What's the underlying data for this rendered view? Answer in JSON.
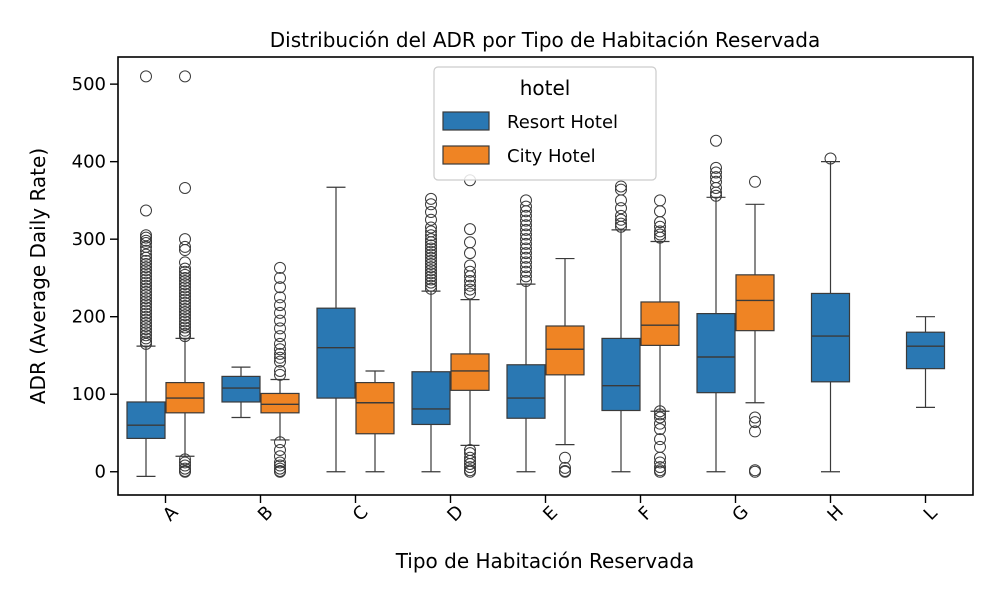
{
  "chart_data": {
    "type": "box",
    "title": "Distribución del ADR por Tipo de Habitación Reservada",
    "xlabel": "Tipo de Habitación Reservada",
    "ylabel": "ADR (Average Daily Rate)",
    "ylim": [
      -30,
      535
    ],
    "yticks": [
      0,
      100,
      200,
      300,
      400,
      500
    ],
    "categories": [
      "A",
      "B",
      "C",
      "D",
      "E",
      "F",
      "G",
      "H",
      "L"
    ],
    "legend": {
      "title": "hotel",
      "placement": "top-center"
    },
    "series": [
      {
        "name": "Resort Hotel",
        "color": "#2a78b3",
        "boxes": [
          {
            "category": "A",
            "whislo": -6,
            "q1": 43,
            "med": 60,
            "q3": 90,
            "whishi": 162,
            "fliers": [
              510,
              337,
              305,
              302,
              298,
              295,
              290,
              285,
              280,
              276,
              272,
              268,
              264,
              260,
              256,
              252,
              248,
              244,
              240,
              236,
              232,
              228,
              224,
              220,
              216,
              212,
              208,
              204,
              200,
              196,
              192,
              188,
              184,
              180,
              176,
              172,
              168,
              165
            ]
          },
          {
            "category": "B",
            "whislo": 70,
            "q1": 90,
            "med": 108,
            "q3": 123,
            "whishi": 135,
            "fliers": []
          },
          {
            "category": "C",
            "whislo": 0,
            "q1": 95,
            "med": 160,
            "q3": 211,
            "whishi": 367,
            "fliers": []
          },
          {
            "category": "D",
            "whislo": 0,
            "q1": 61,
            "med": 81,
            "q3": 129,
            "whishi": 233,
            "fliers": [
              352,
              345,
              335,
              325,
              315,
              310,
              305,
              300,
              296,
              292,
              288,
              284,
              280,
              276,
              272,
              268,
              264,
              260,
              256,
              252,
              248,
              244,
              240,
              236
            ]
          },
          {
            "category": "E",
            "whislo": 0,
            "q1": 69,
            "med": 95,
            "q3": 138,
            "whishi": 242,
            "fliers": [
              350,
              342,
              336,
              330,
              324,
              318,
              312,
              306,
              300,
              294,
              288,
              282,
              276,
              270,
              264,
              258,
              252,
              246
            ]
          },
          {
            "category": "F",
            "whislo": 0,
            "q1": 79,
            "med": 111,
            "q3": 172,
            "whishi": 312,
            "fliers": [
              368,
              364,
              350,
              340,
              330,
              325,
              320,
              316
            ]
          },
          {
            "category": "G",
            "whislo": 0,
            "q1": 102,
            "med": 148,
            "q3": 204,
            "whishi": 354,
            "fliers": [
              427,
              392,
              386,
              380,
              374,
              366,
              360,
              356
            ]
          },
          {
            "category": "H",
            "whislo": 0,
            "q1": 116,
            "med": 175,
            "q3": 230,
            "whishi": 400,
            "fliers": [
              404
            ]
          },
          {
            "category": "L",
            "whislo": 83,
            "q1": 133,
            "med": 162,
            "q3": 180,
            "whishi": 200,
            "fliers": []
          }
        ]
      },
      {
        "name": "City Hotel",
        "color": "#ef8424",
        "boxes": [
          {
            "category": "A",
            "whislo": 20,
            "q1": 76,
            "med": 95,
            "q3": 115,
            "whishi": 172,
            "fliers": [
              510,
              366,
              300,
              290,
              286,
              270,
              262,
              258,
              254,
              250,
              246,
              242,
              238,
              234,
              230,
              226,
              222,
              218,
              214,
              210,
              206,
              202,
              198,
              194,
              190,
              186,
              182,
              178,
              175,
              16,
              12,
              8,
              4,
              1,
              0
            ]
          },
          {
            "category": "B",
            "whislo": 41,
            "q1": 76,
            "med": 87,
            "q3": 101,
            "whishi": 119,
            "fliers": [
              263,
              250,
              238,
              225,
              215,
              205,
              195,
              185,
              175,
              165,
              158,
              152,
              147,
              142,
              130,
              125,
              38,
              28,
              20,
              12,
              8,
              4,
              1,
              0
            ]
          },
          {
            "category": "C",
            "whislo": 0,
            "q1": 49,
            "med": 89,
            "q3": 115,
            "whishi": 130,
            "fliers": []
          },
          {
            "category": "D",
            "whislo": 34,
            "q1": 105,
            "med": 130,
            "q3": 152,
            "whishi": 222,
            "fliers": [
              376,
              313,
              296,
              282,
              266,
              258,
              252,
              246,
              240,
              235,
              230,
              28,
              24,
              18,
              14,
              10,
              6,
              2,
              0
            ]
          },
          {
            "category": "E",
            "whislo": 35,
            "q1": 125,
            "med": 158,
            "q3": 188,
            "whishi": 275,
            "fliers": [
              18,
              5,
              1,
              0
            ]
          },
          {
            "category": "F",
            "whislo": 78,
            "q1": 163,
            "med": 189,
            "q3": 219,
            "whishi": 297,
            "fliers": [
              350,
              336,
              322,
              316,
              310,
              306,
              302,
              78,
              74,
              70,
              62,
              55,
              42,
              32,
              18,
              12,
              6,
              2,
              0
            ]
          },
          {
            "category": "G",
            "whislo": 89,
            "q1": 182,
            "med": 221,
            "q3": 254,
            "whishi": 345,
            "fliers": [
              374,
              70,
              64,
              52,
              2,
              0
            ]
          }
        ]
      }
    ]
  }
}
